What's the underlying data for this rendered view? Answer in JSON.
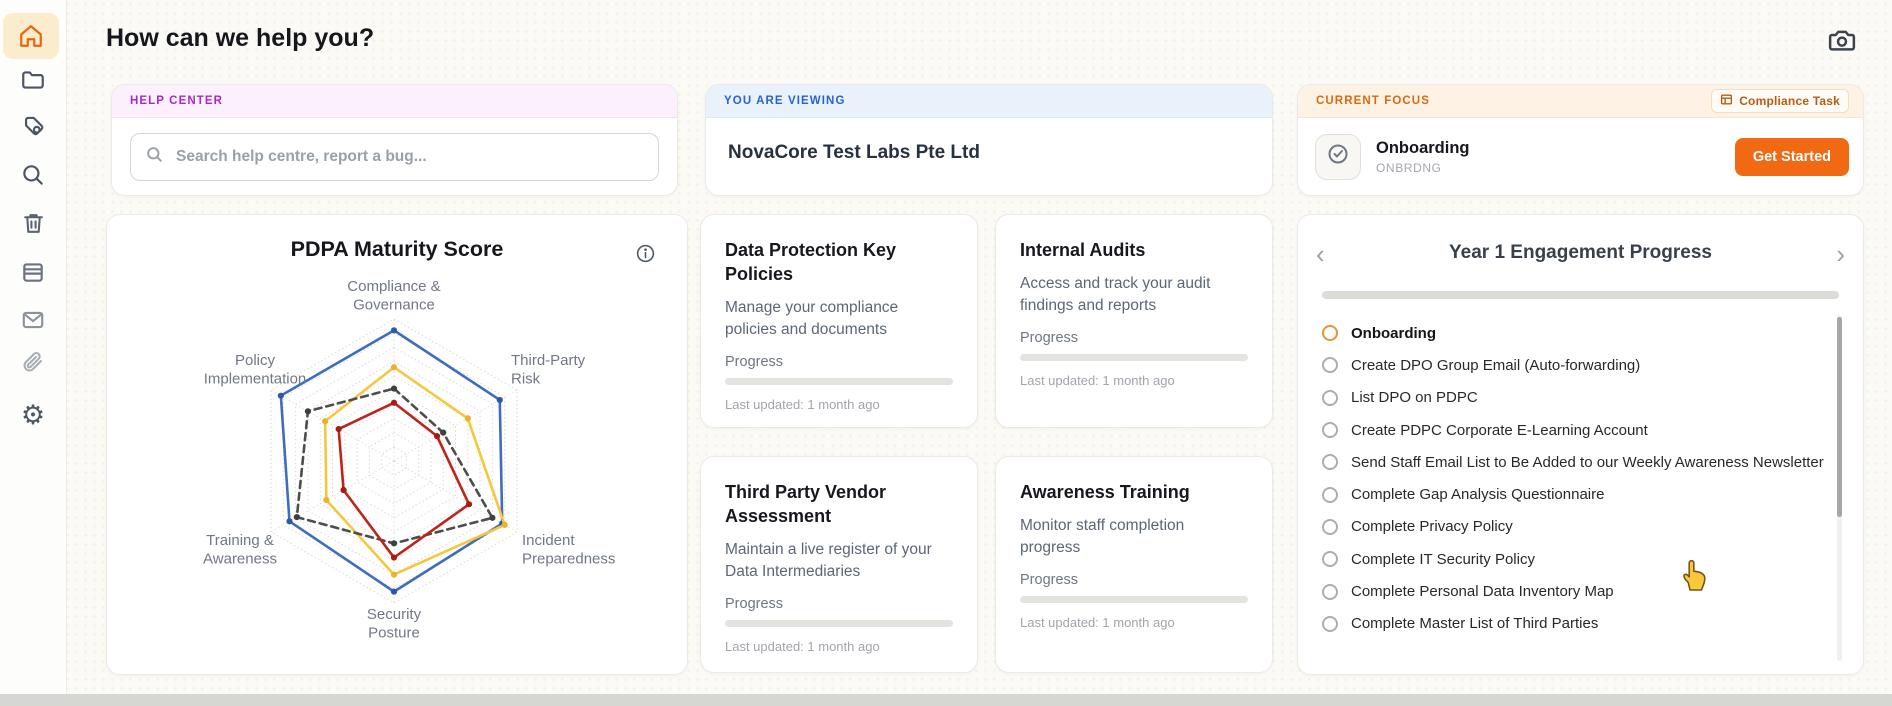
{
  "header": {
    "title": "How can we help you?"
  },
  "sidebar": {
    "active_item": "home",
    "icons": [
      "home-icon",
      "folder-icon",
      "tags-icon",
      "search-icon",
      "trash-icon",
      "table-icon",
      "mail-icon",
      "paperclip-icon",
      "settings-gear-icon"
    ]
  },
  "help_center": {
    "label": "HELP CENTER",
    "search_placeholder": "Search help centre, report a bug..."
  },
  "you_are_viewing": {
    "label": "YOU ARE VIEWING",
    "company": "NovaCore Test Labs Pte Ltd"
  },
  "current_focus": {
    "label": "CURRENT FOCUS",
    "badge_label": "Compliance Task",
    "task_title": "Onboarding",
    "task_code": "ONBRDNG",
    "cta_label": "Get Started"
  },
  "chart_data": {
    "type": "radar",
    "title": "PDPA Maturity Score",
    "categories": [
      "Compliance & Governance",
      "Third-Party Risk",
      "Incident Preparedness",
      "Security Posture",
      "Training & Awareness",
      "Policy Implementation"
    ],
    "scale_min": 0,
    "scale_max": 100,
    "rings": 10,
    "grid": "dotted-hexagon",
    "legend_position": "none",
    "series": [
      {
        "name": "blue",
        "color": "#3e6cbf",
        "point_color": "#2d59a6",
        "style": "solid",
        "values": [
          92,
          86,
          88,
          92,
          85,
          92
        ]
      },
      {
        "name": "yellow",
        "color": "#f4c73f",
        "point_color": "#e9b32a",
        "style": "solid",
        "values": [
          66,
          60,
          90,
          80,
          55,
          56
        ]
      },
      {
        "name": "gray-dashed",
        "color": "#4d4d4d",
        "point_color": "#3f3f3f",
        "style": "dashed",
        "values": [
          51,
          40,
          80,
          58,
          79,
          70
        ]
      },
      {
        "name": "red",
        "color": "#bf2319",
        "point_color": "#a61b12",
        "style": "solid",
        "values": [
          41,
          35,
          61,
          68,
          41,
          45
        ]
      }
    ]
  },
  "feature_cards": [
    {
      "title": "Data Protection Key Policies",
      "description": "Manage your compliance policies and documents",
      "progress_label": "Progress",
      "progress_percent": 0,
      "last_updated": "Last updated: 1 month ago"
    },
    {
      "title": "Internal Audits",
      "description": "Access and track your audit findings and reports",
      "progress_label": "Progress",
      "progress_percent": 0,
      "last_updated": "Last updated: 1 month ago"
    },
    {
      "title": "Third Party Vendor Assessment",
      "description": "Maintain a live register of your Data Intermediaries",
      "progress_label": "Progress",
      "progress_percent": 0,
      "last_updated": "Last updated: 1 month ago"
    },
    {
      "title": "Awareness Training",
      "description": "Monitor staff completion progress",
      "progress_label": "Progress",
      "progress_percent": 0,
      "last_updated": "Last updated: 1 month ago"
    }
  ],
  "engagement": {
    "title": "Year 1 Engagement Progress",
    "progress_percent": 0,
    "items": [
      {
        "label": "Onboarding",
        "active": true
      },
      {
        "label": "Create DPO Group Email (Auto-forwarding)",
        "active": false
      },
      {
        "label": "List DPO on PDPC",
        "active": false
      },
      {
        "label": "Create PDPC Corporate E-Learning Account",
        "active": false
      },
      {
        "label": "Send Staff Email List to Be Added to our Weekly Awareness Newsletter",
        "active": false
      },
      {
        "label": "Complete Gap Analysis Questionnaire",
        "active": false
      },
      {
        "label": "Complete Privacy Policy",
        "active": false
      },
      {
        "label": "Complete IT Security Policy",
        "active": false
      },
      {
        "label": "Complete Personal Data Inventory Map",
        "active": false
      },
      {
        "label": "Complete Master List of Third Parties",
        "active": false
      }
    ]
  },
  "colors": {
    "accent_orange": "#f16a13",
    "help_purple": "#a62bc4",
    "viewing_blue": "#2a63cf",
    "focus_orange": "#d96a12",
    "active_radio_orange": "#e8923b"
  }
}
